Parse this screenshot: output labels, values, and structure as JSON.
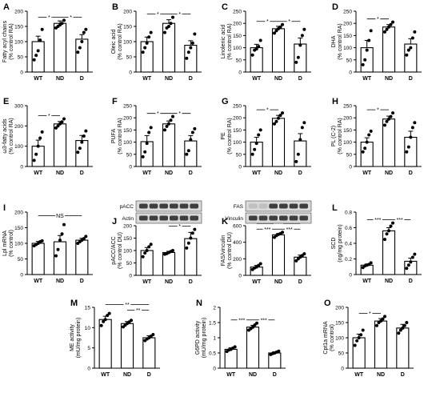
{
  "chart_data": [
    {
      "panel": "A",
      "type": "bar",
      "categories": [
        "WT",
        "ND",
        "D"
      ],
      "ylabel": "Fatty acyl chains\n(% control RA)",
      "ylim": [
        0,
        200
      ],
      "yticks": [
        0,
        50,
        100,
        150,
        200
      ],
      "values": [
        100,
        160,
        108
      ],
      "errors": [
        18,
        8,
        15
      ],
      "points": [
        [
          40,
          55,
          70,
          105,
          140
        ],
        [
          145,
          150,
          155,
          160,
          170
        ],
        [
          65,
          80,
          100,
          130,
          140
        ]
      ],
      "sig": [
        {
          "from": 0,
          "to": 1,
          "label": "*"
        },
        {
          "from": 1,
          "to": 2,
          "label": "*"
        }
      ]
    },
    {
      "panel": "B",
      "type": "bar",
      "categories": [
        "WT",
        "ND",
        "D"
      ],
      "ylabel": "Oleic acid\n(% control RA)",
      "ylim": [
        0,
        200
      ],
      "yticks": [
        0,
        50,
        100,
        150,
        200
      ],
      "values": [
        100,
        160,
        88
      ],
      "errors": [
        15,
        12,
        15
      ],
      "points": [
        [
          65,
          80,
          95,
          115,
          130
        ],
        [
          130,
          145,
          150,
          160,
          180
        ],
        [
          45,
          65,
          80,
          95,
          125
        ]
      ],
      "sig": [
        {
          "from": 0,
          "to": 1,
          "label": "*"
        },
        {
          "from": 1,
          "to": 2,
          "label": "*"
        }
      ]
    },
    {
      "panel": "C",
      "type": "bar",
      "categories": [
        "WT",
        "ND",
        "D"
      ],
      "ylabel": "Linolenic acid\n(% control RA)",
      "ylim": [
        0,
        250
      ],
      "yticks": [
        0,
        50,
        100,
        150,
        200,
        250
      ],
      "values": [
        100,
        178,
        115
      ],
      "errors": [
        14,
        10,
        25
      ],
      "points": [
        [
          70,
          90,
          95,
          105,
          130
        ],
        [
          160,
          170,
          178,
          185,
          195
        ],
        [
          40,
          60,
          110,
          150,
          175
        ]
      ],
      "sig": [
        {
          "from": 0,
          "to": 1,
          "label": "*"
        },
        {
          "from": 1,
          "to": 2,
          "label": "*"
        }
      ]
    },
    {
      "panel": "D",
      "type": "bar",
      "categories": [
        "WT",
        "ND",
        "D"
      ],
      "ylabel": "DHA\n(% control RA)",
      "ylim": [
        0,
        250
      ],
      "yticks": [
        0,
        50,
        100,
        150,
        200,
        250
      ],
      "values": [
        100,
        185,
        115
      ],
      "errors": [
        30,
        10,
        22
      ],
      "points": [
        [
          30,
          50,
          90,
          130,
          170
        ],
        [
          165,
          175,
          185,
          195,
          205
        ],
        [
          70,
          90,
          100,
          140,
          165
        ]
      ],
      "sig": [
        {
          "from": 0,
          "to": 1,
          "label": "*"
        }
      ]
    },
    {
      "panel": "E",
      "type": "bar",
      "categories": [
        "WT",
        "ND",
        "D"
      ],
      "ylabel": "ω3-fatty acids\n(% control RA)",
      "ylim": [
        0,
        300
      ],
      "yticks": [
        0,
        100,
        200,
        300
      ],
      "values": [
        100,
        210,
        128
      ],
      "errors": [
        30,
        12,
        25
      ],
      "points": [
        [
          30,
          60,
          100,
          140,
          170
        ],
        [
          190,
          200,
          210,
          220,
          235
        ],
        [
          70,
          90,
          120,
          150,
          175
        ]
      ],
      "sig": [
        {
          "from": 0,
          "to": 1,
          "label": "*"
        }
      ]
    },
    {
      "panel": "F",
      "type": "bar",
      "categories": [
        "WT",
        "ND",
        "D"
      ],
      "ylabel": "PUFA\n(% control RA)",
      "ylim": [
        0,
        250
      ],
      "yticks": [
        0,
        50,
        100,
        150,
        200,
        250
      ],
      "values": [
        102,
        175,
        105
      ],
      "errors": [
        25,
        12,
        22
      ],
      "points": [
        [
          40,
          60,
          95,
          140,
          160
        ],
        [
          150,
          165,
          175,
          190,
          205
        ],
        [
          50,
          65,
          110,
          140,
          155
        ]
      ],
      "sig": [
        {
          "from": 0,
          "to": 1,
          "label": "*"
        },
        {
          "from": 1,
          "to": 2,
          "label": "*"
        }
      ]
    },
    {
      "panel": "G",
      "type": "bar",
      "categories": [
        "WT",
        "ND",
        "D"
      ],
      "ylabel": "PE\n(% control RA)",
      "ylim": [
        0,
        250
      ],
      "yticks": [
        0,
        50,
        100,
        150,
        200,
        250
      ],
      "values": [
        100,
        198,
        105
      ],
      "errors": [
        20,
        12,
        30
      ],
      "points": [
        [
          50,
          70,
          95,
          130,
          150
        ],
        [
          175,
          185,
          198,
          210,
          220
        ],
        [
          20,
          50,
          110,
          160,
          180
        ]
      ],
      "sig": [
        {
          "from": 0,
          "to": 1,
          "label": "*"
        }
      ]
    },
    {
      "panel": "H",
      "type": "bar",
      "categories": [
        "WT",
        "ND",
        "D"
      ],
      "ylabel": "PL (C-2)\n(% control RA)",
      "ylim": [
        0,
        250
      ],
      "yticks": [
        0,
        50,
        100,
        150,
        200,
        250
      ],
      "values": [
        100,
        195,
        120
      ],
      "errors": [
        18,
        12,
        25
      ],
      "points": [
        [
          60,
          75,
          100,
          130,
          145
        ],
        [
          170,
          185,
          195,
          205,
          220
        ],
        [
          60,
          80,
          120,
          160,
          180
        ]
      ],
      "sig": [
        {
          "from": 0,
          "to": 1,
          "label": "*"
        }
      ]
    },
    {
      "panel": "I",
      "type": "bar",
      "categories": [
        "WT",
        "ND",
        "D"
      ],
      "ylabel": "Lpl mRNA\n(% control)",
      "ylim": [
        0,
        200
      ],
      "yticks": [
        0,
        50,
        100,
        150,
        200
      ],
      "values": [
        100,
        105,
        110
      ],
      "errors": [
        6,
        20,
        6
      ],
      "points": [
        [
          92,
          96,
          100,
          105,
          108
        ],
        [
          60,
          80,
          110,
          130,
          160
        ],
        [
          100,
          105,
          110,
          115,
          122
        ]
      ],
      "sig": [
        {
          "from": 0,
          "to": 2,
          "label": "NS"
        }
      ]
    },
    {
      "panel": "J",
      "type": "bar",
      "categories": [
        "WT",
        "ND",
        "D"
      ],
      "ylabel": "pACC/ACC\n(% control DU)",
      "ylim": [
        0,
        200
      ],
      "yticks": [
        0,
        50,
        100,
        150,
        200
      ],
      "values": [
        100,
        92,
        148
      ],
      "errors": [
        12,
        5,
        25
      ],
      "points": [
        [
          75,
          90,
          100,
          115,
          125
        ],
        [
          85,
          88,
          92,
          96,
          100
        ],
        [
          110,
          130,
          150,
          170,
          185
        ]
      ],
      "sig": [
        {
          "from": 0,
          "to": 2,
          "label": "*"
        },
        {
          "from": 1,
          "to": 2,
          "label": "*"
        }
      ],
      "blot": {
        "rows": [
          "pACC",
          "Actin"
        ]
      }
    },
    {
      "panel": "K",
      "type": "bar",
      "categories": [
        "WT",
        "ND",
        "D"
      ],
      "ylabel": "FAS/vinculin\n(% control DU)",
      "ylim": [
        0,
        600
      ],
      "yticks": [
        0,
        200,
        400,
        600
      ],
      "values": [
        100,
        490,
        220
      ],
      "errors": [
        20,
        15,
        25
      ],
      "points": [
        [
          70,
          90,
          100,
          120,
          140
        ],
        [
          460,
          480,
          495,
          505,
          520
        ],
        [
          175,
          200,
          220,
          240,
          260
        ]
      ],
      "sig": [
        {
          "from": 0,
          "to": 1,
          "label": "***"
        },
        {
          "from": 0,
          "to": 2,
          "label": "***"
        },
        {
          "from": 1,
          "to": 2,
          "label": "***"
        }
      ],
      "blot": {
        "rows": [
          "FAS",
          "Vinculin"
        ]
      }
    },
    {
      "panel": "L",
      "type": "bar",
      "categories": [
        "WT",
        "ND",
        "D"
      ],
      "ylabel": "SCD\n(ng/mg protein)",
      "ylim": [
        0,
        0.8
      ],
      "yticks": [
        0.0,
        0.2,
        0.4,
        0.6,
        0.8
      ],
      "values": [
        0.12,
        0.56,
        0.17
      ],
      "errors": [
        0.015,
        0.04,
        0.04
      ],
      "points": [
        [
          0.09,
          0.11,
          0.12,
          0.13,
          0.15
        ],
        [
          0.45,
          0.52,
          0.56,
          0.62,
          0.66
        ],
        [
          0.08,
          0.12,
          0.16,
          0.22,
          0.26
        ]
      ],
      "sig": [
        {
          "from": 0,
          "to": 1,
          "label": "***"
        },
        {
          "from": 1,
          "to": 2,
          "label": "***"
        }
      ]
    },
    {
      "panel": "M",
      "type": "bar",
      "categories": [
        "WT",
        "ND",
        "D"
      ],
      "ylabel": "ME activity\n(mU/mg protein)",
      "ylim": [
        0,
        15
      ],
      "yticks": [
        0,
        5,
        10,
        15
      ],
      "values": [
        12,
        11,
        7.5
      ],
      "errors": [
        0.8,
        0.5,
        0.5
      ],
      "points": [
        [
          10.5,
          11.5,
          12,
          13,
          13.5
        ],
        [
          10.2,
          10.6,
          11,
          11.4,
          11.8
        ],
        [
          6.8,
          7.2,
          7.5,
          7.9,
          8.3
        ]
      ],
      "sig": [
        {
          "from": 0,
          "to": 2,
          "label": "**"
        },
        {
          "from": 1,
          "to": 2,
          "label": "**"
        }
      ]
    },
    {
      "panel": "N",
      "type": "bar",
      "categories": [
        "WT",
        "ND",
        "D"
      ],
      "ylabel": "G6PD activity\n(mU/mg protein)",
      "ylim": [
        0,
        2.0
      ],
      "yticks": [
        0.0,
        0.5,
        1.0,
        1.5,
        2.0
      ],
      "values": [
        0.62,
        1.35,
        0.5
      ],
      "errors": [
        0.05,
        0.06,
        0.04
      ],
      "points": [
        [
          0.55,
          0.6,
          0.62,
          0.66,
          0.7
        ],
        [
          1.25,
          1.3,
          1.35,
          1.42,
          1.48
        ],
        [
          0.45,
          0.48,
          0.5,
          0.53,
          0.56
        ]
      ],
      "sig": [
        {
          "from": 0,
          "to": 1,
          "label": "***"
        },
        {
          "from": 1,
          "to": 2,
          "label": "***"
        }
      ]
    },
    {
      "panel": "O",
      "type": "bar",
      "categories": [
        "WT",
        "ND",
        "D"
      ],
      "ylabel": "Cpt1a mRNA\n(% control)",
      "ylim": [
        0,
        200
      ],
      "yticks": [
        0,
        50,
        100,
        150,
        200
      ],
      "values": [
        100,
        155,
        132
      ],
      "errors": [
        12,
        8,
        12
      ],
      "points": [
        [
          75,
          90,
          100,
          110,
          125
        ],
        [
          140,
          150,
          155,
          162,
          170
        ],
        [
          115,
          125,
          132,
          140,
          150
        ]
      ],
      "sig": [
        {
          "from": 0,
          "to": 1,
          "label": "*"
        }
      ]
    }
  ]
}
